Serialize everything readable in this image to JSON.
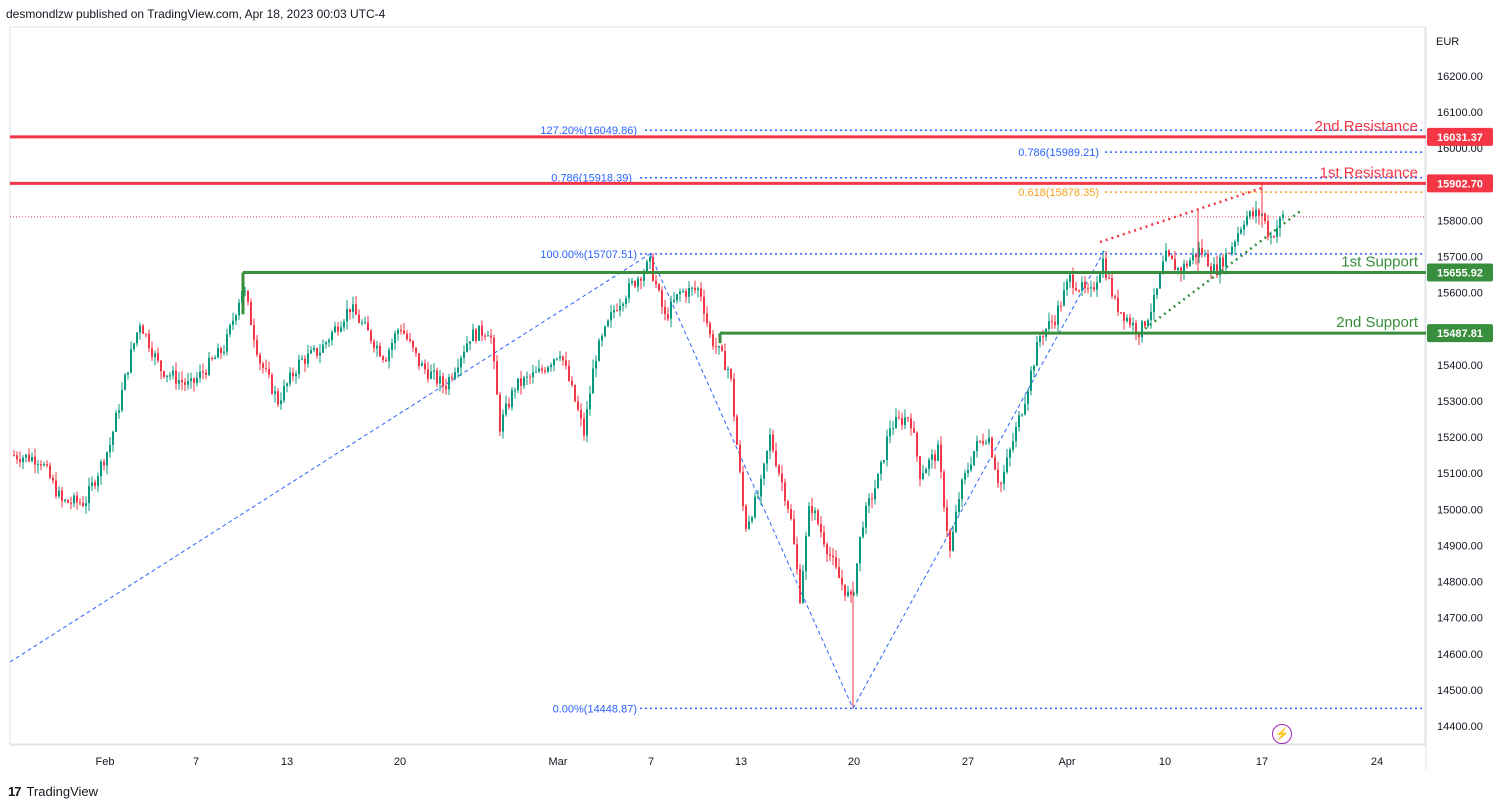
{
  "header": {
    "text": "desmondlzw published on TradingView.com, Apr 18, 2023 00:03 UTC-4"
  },
  "footer": {
    "logo": "17",
    "brand": "TradingView"
  },
  "icons": {
    "replay": "lightning-bolt-icon"
  },
  "chart_data": {
    "type": "candlestick",
    "currency": "EUR",
    "y_ticks": [
      14400,
      14500,
      14600,
      14700,
      14800,
      14900,
      15000,
      15100,
      15200,
      15300,
      15400,
      15500,
      15600,
      15700,
      15800,
      15900,
      16000,
      16100,
      16200
    ],
    "x_ticks": [
      "Feb",
      "7",
      "13",
      "20",
      "Mar",
      "7",
      "13",
      "20",
      "27",
      "Apr",
      "10",
      "17",
      "24"
    ],
    "levels": [
      {
        "name": "2nd Resistance",
        "value": 16031.37,
        "tag": "16031.37",
        "color": "#f23645"
      },
      {
        "name": "1st Resistance",
        "value": 15902.7,
        "tag": "15902.70",
        "color": "#f23645"
      },
      {
        "name": "1st Support",
        "value": 15655.92,
        "tag": "15655.92",
        "color": "#388e3c"
      },
      {
        "name": "2nd Support",
        "value": 15487.81,
        "tag": "15487.81",
        "color": "#388e3c"
      }
    ],
    "fib_labels": [
      {
        "text": "127.20%(16049.86)",
        "value": 16049.86
      },
      {
        "text": "0.786(15989.21)",
        "value": 15989.21
      },
      {
        "text": "0.786(15918.39)",
        "value": 15918.39
      },
      {
        "text": "0.618(15878.35)",
        "value": 15878.35,
        "color": "orange"
      },
      {
        "text": "100.00%(15707.51)",
        "value": 15707.51
      },
      {
        "text": "0.00%(14448.87)",
        "value": 14448.87
      }
    ],
    "last_price": 15810
  }
}
